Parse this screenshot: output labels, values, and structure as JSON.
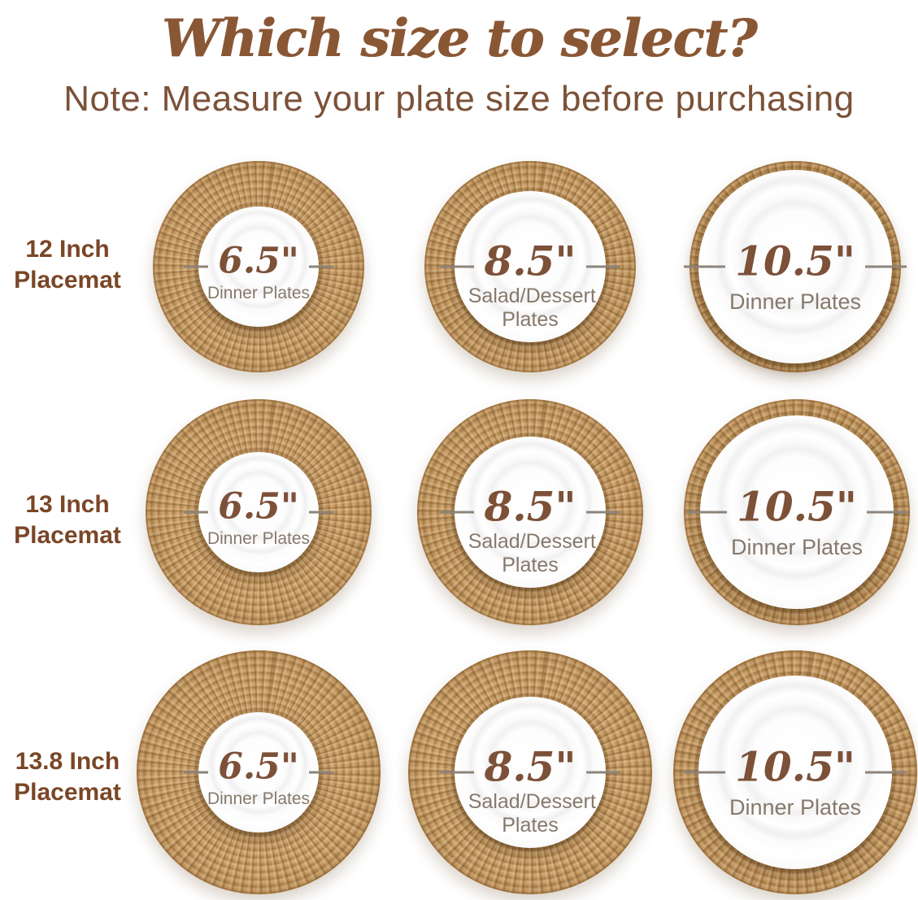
{
  "page": {
    "title": "Which size to select?",
    "note": "Note: Measure your plate size before purchasing"
  },
  "colors": {
    "title_brown": "#8a5734",
    "note_brown": "#7b5238",
    "row_label_brown": "#7a4627",
    "size_number_brown": "#7c5138",
    "plate_type_gray": "#86796b",
    "measure_line_gray": "#8d847a",
    "rope_tan": "#c49a64",
    "plate_white": "#ffffff"
  },
  "rows": [
    {
      "label_line1": "12 Inch",
      "label_line2": "Placemat",
      "cells": [
        {
          "size": "6.5\"",
          "plate_type": "Dinner Plates"
        },
        {
          "size": "8.5\"",
          "plate_type": "Salad/Dessert Plates"
        },
        {
          "size": "10.5\"",
          "plate_type": "Dinner Plates"
        }
      ]
    },
    {
      "label_line1": "13 Inch",
      "label_line2": "Placemat",
      "cells": [
        {
          "size": "6.5\"",
          "plate_type": "Dinner Plates"
        },
        {
          "size": "8.5\"",
          "plate_type": "Salad/Dessert Plates"
        },
        {
          "size": "10.5\"",
          "plate_type": "Dinner Plates"
        }
      ]
    },
    {
      "label_line1": "13.8 Inch",
      "label_line2": "Placemat",
      "cells": [
        {
          "size": "6.5\"",
          "plate_type": "Dinner Plates"
        },
        {
          "size": "8.5\"",
          "plate_type": "Salad/Dessert Plates"
        },
        {
          "size": "10.5\"",
          "plate_type": "Dinner Plates"
        }
      ]
    }
  ]
}
